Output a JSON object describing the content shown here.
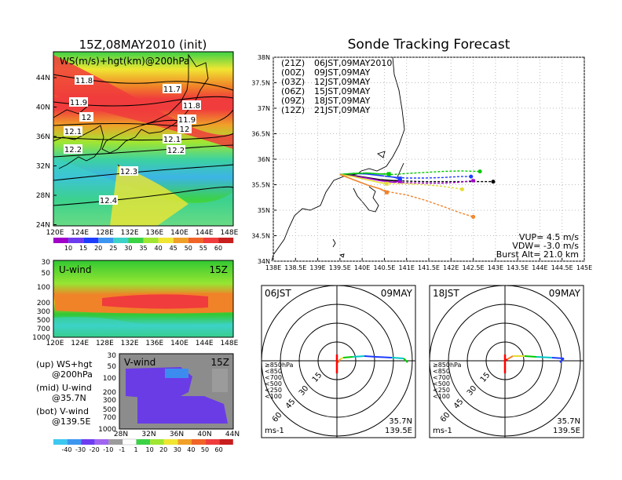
{
  "left": {
    "title": "15Z,08MAY2010 (init)",
    "map_label": "WS(m/s)+hgt(km)@200hPa",
    "lat_ticks": [
      "44N",
      "40N",
      "36N",
      "32N",
      "28N",
      "24N"
    ],
    "lon_ticks": [
      "120E",
      "124E",
      "128E",
      "132E",
      "136E",
      "140E",
      "144E",
      "148E"
    ],
    "contours": [
      "11.8",
      "11.7",
      "11.9",
      "11.8",
      "12",
      "11.9",
      "12.1",
      "12",
      "12.1",
      "12.2",
      "12.2",
      "12.3",
      "12.4"
    ],
    "ws_colorbar": [
      "10",
      "15",
      "20",
      "25",
      "30",
      "35",
      "40",
      "45",
      "50",
      "55",
      "60"
    ],
    "u_label": "U-wind",
    "u_time": "15Z",
    "v_label": "V-wind",
    "v_time": "15Z",
    "pressure_ticks": [
      "30",
      "50",
      "100",
      "200",
      "300",
      "500",
      "700",
      "1000"
    ],
    "v_lat_ticks": [
      "28N",
      "32N",
      "36N",
      "40N",
      "44N"
    ],
    "v_colorbar": [
      "-40",
      "-30",
      "-20",
      "-10",
      "-1",
      "1",
      "10",
      "20",
      "30",
      "40",
      "50",
      "60"
    ],
    "legend": [
      [
        "(up) WS+hgt",
        "@200hPa"
      ],
      [
        "(mid) U-wind",
        "@35.7N"
      ],
      [
        "(bot) V-wind",
        "@139.5E"
      ]
    ]
  },
  "forecast": {
    "title": "Sonde Tracking Forecast",
    "runs": [
      {
        "code": "(21Z)",
        "label": "06JST,09MAY2010",
        "color": "#000000"
      },
      {
        "code": "(00Z)",
        "label": "09JST,09MAY",
        "color": "#a000c8"
      },
      {
        "code": "(03Z)",
        "label": "12JST,09MAY",
        "color": "#1e3cff"
      },
      {
        "code": "(06Z)",
        "label": "15JST,09MAY",
        "color": "#00c800"
      },
      {
        "code": "(09Z)",
        "label": "18JST,09MAY",
        "color": "#e6dc32"
      },
      {
        "code": "(12Z)",
        "label": "21JST,09MAY",
        "color": "#f08228"
      }
    ],
    "params": [
      "VUP= 4.5 m/s",
      "VDW= -3.0 m/s",
      "Burst Alt= 21.0 km"
    ]
  },
  "hodo": [
    {
      "time": "06JST",
      "date": "09MAY",
      "lat": "35.7N",
      "lon": "139.5E",
      "unit": "ms-1",
      "rings": [
        "15",
        "30",
        "45",
        "60"
      ]
    },
    {
      "time": "18JST",
      "date": "09MAY",
      "lat": "35.7N",
      "lon": "139.5E",
      "unit": "ms-1",
      "rings": [
        "15",
        "30",
        "45",
        "60"
      ]
    }
  ],
  "hodo_levels": [
    {
      "label": "≥850hPa",
      "color": "#ff0000"
    },
    {
      "label": "<850",
      "color": "#f08228"
    },
    {
      "label": "<700",
      "color": "#e6dc32"
    },
    {
      "label": "<500",
      "color": "#00c800"
    },
    {
      "label": "<250",
      "color": "#00c8c8"
    },
    {
      "label": "<100",
      "color": "#1e3cff"
    }
  ],
  "chart_data": {
    "type": "line",
    "title": "Sonde Tracking Forecast",
    "xlabel": "",
    "ylabel": "",
    "x_ticks": [
      "138E",
      "138.5E",
      "139E",
      "139.5E",
      "140E",
      "140.5E",
      "141E",
      "141.5E",
      "142E",
      "142.5E",
      "143E",
      "143.5E",
      "144E",
      "144.5E",
      "145E"
    ],
    "y_ticks": [
      "34N",
      "34.5N",
      "35N",
      "35.5N",
      "36N",
      "36.5N",
      "37N",
      "37.5N",
      "38N"
    ],
    "xlim": [
      138,
      145
    ],
    "ylim": [
      34,
      38
    ],
    "launch": {
      "lon": 139.5,
      "lat": 35.7
    },
    "series": [
      {
        "name": "(21Z) 06JST,09MAY2010",
        "color": "#000000",
        "lon": [
          139.5,
          139.8,
          140.1,
          140.4,
          140.7,
          141.0,
          141.4,
          141.8,
          142.2,
          142.6,
          142.95
        ],
        "lat": [
          35.7,
          35.68,
          35.64,
          35.6,
          35.58,
          35.57,
          35.56,
          35.56,
          35.56,
          35.56,
          35.56
        ],
        "burst": {
          "lon": 140.85,
          "lat": 35.58
        }
      },
      {
        "name": "(00Z) 09JST,09MAY",
        "color": "#a000c8",
        "lon": [
          139.5,
          139.8,
          140.1,
          140.4,
          140.7,
          141.0,
          141.4,
          141.8,
          142.2,
          142.5
        ],
        "lat": [
          35.7,
          35.67,
          35.63,
          35.58,
          35.55,
          35.54,
          35.53,
          35.53,
          35.55,
          35.58
        ],
        "burst": {
          "lon": 140.85,
          "lat": 35.57
        }
      },
      {
        "name": "(03Z) 12JST,09MAY",
        "color": "#1e3cff",
        "lon": [
          139.5,
          139.8,
          140.1,
          140.4,
          140.7,
          141.0,
          141.4,
          141.8,
          142.2,
          142.45
        ],
        "lat": [
          35.7,
          35.72,
          35.71,
          35.68,
          35.65,
          35.63,
          35.63,
          35.64,
          35.66,
          35.66
        ],
        "burst": {
          "lon": 140.85,
          "lat": 35.62
        }
      },
      {
        "name": "(06Z) 15JST,09MAY",
        "color": "#00c800",
        "lon": [
          139.5,
          139.8,
          140.1,
          140.4,
          140.7,
          141.0,
          141.4,
          141.8,
          142.2,
          142.65
        ],
        "lat": [
          35.7,
          35.72,
          35.73,
          35.71,
          35.7,
          35.72,
          35.74,
          35.76,
          35.77,
          35.76
        ],
        "burst": {
          "lon": 140.6,
          "lat": 35.71
        }
      },
      {
        "name": "(09Z) 18JST,09MAY",
        "color": "#e6dc32",
        "lon": [
          139.5,
          139.8,
          140.1,
          140.4,
          140.7,
          141.0,
          141.4,
          141.8,
          142.2,
          142.25
        ],
        "lat": [
          35.7,
          35.66,
          35.6,
          35.54,
          35.52,
          35.52,
          35.5,
          35.47,
          35.42,
          35.41
        ],
        "burst": {
          "lon": 140.55,
          "lat": 35.52
        }
      },
      {
        "name": "(12Z) 21JST,09MAY",
        "color": "#f08228",
        "lon": [
          139.5,
          139.8,
          140.1,
          140.4,
          140.6,
          141.0,
          141.4,
          141.8,
          142.2,
          142.5
        ],
        "lat": [
          35.7,
          35.6,
          35.5,
          35.42,
          35.36,
          35.3,
          35.2,
          35.08,
          34.95,
          34.87
        ],
        "burst": {
          "lon": 140.55,
          "lat": 35.35
        }
      }
    ]
  }
}
